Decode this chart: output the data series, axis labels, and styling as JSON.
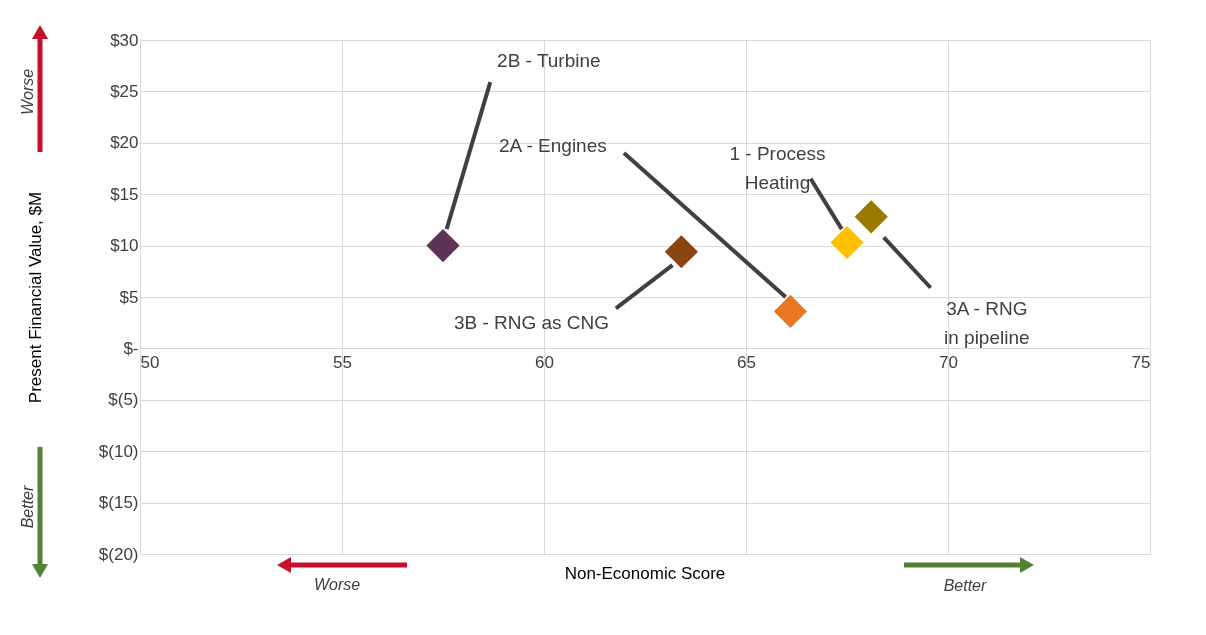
{
  "chart_data": {
    "type": "scatter",
    "xlabel": "Non-Economic Score",
    "ylabel": "Present Financial Value, $M",
    "xlim": [
      50,
      75
    ],
    "xticks": [
      50,
      55,
      60,
      65,
      70,
      75
    ],
    "ylim": [
      -20,
      30
    ],
    "yticks": [
      {
        "value": -20,
        "label": "$(20)"
      },
      {
        "value": -15,
        "label": "$(15)"
      },
      {
        "value": -10,
        "label": "$(10)"
      },
      {
        "value": -5,
        "label": "$(5)"
      },
      {
        "value": 0,
        "label": "$-"
      },
      {
        "value": 5,
        "label": "$5"
      },
      {
        "value": 10,
        "label": "$10"
      },
      {
        "value": 15,
        "label": "$15"
      },
      {
        "value": 20,
        "label": "$20"
      },
      {
        "value": 25,
        "label": "$25"
      },
      {
        "value": 30,
        "label": "$30"
      }
    ],
    "grid": true,
    "marker": "diamond",
    "annotations": [
      "Worse",
      "Better",
      "Worse",
      "Better"
    ],
    "series": [
      {
        "name": "2B - Turbine",
        "color": "#5c3556",
        "x": [
          57.5
        ],
        "values": [
          10
        ]
      },
      {
        "name": "3B - RNG as CNG",
        "color": "#8b4513",
        "x": [
          63.4
        ],
        "values": [
          9.4
        ]
      },
      {
        "name": "2A - Engines",
        "color": "#e87722",
        "x": [
          66.1
        ],
        "values": [
          3.6
        ]
      },
      {
        "name": "1 - Process Heating",
        "color": "#ffc000",
        "x": [
          67.5
        ],
        "values": [
          10.3
        ]
      },
      {
        "name": "3A - RNG in pipeline",
        "color": "#9a7b00",
        "x": [
          68.1
        ],
        "values": [
          12.8
        ]
      }
    ]
  }
}
